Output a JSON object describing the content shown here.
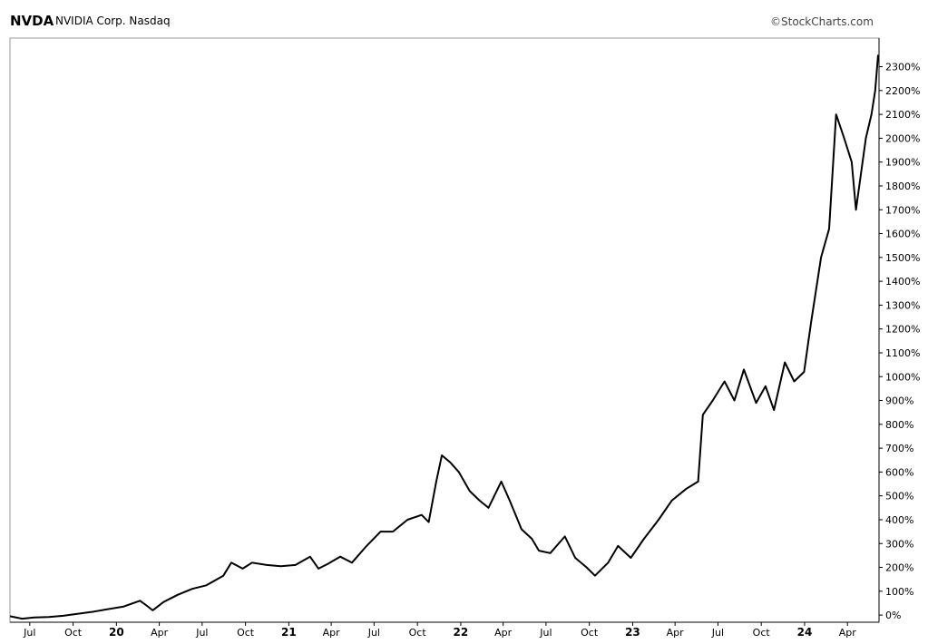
{
  "header": {
    "ticker": "NVDA",
    "name": "NVIDIA Corp. Nasdaq",
    "source": "©StockCharts.com"
  },
  "chart_data": {
    "type": "line",
    "ylabel": "",
    "xlabel": "",
    "grid": false,
    "legend": "none",
    "line_color": "#000000",
    "ylim": [
      -30,
      2420
    ],
    "y_ticks": [
      {
        "value": 0,
        "label": "0%"
      },
      {
        "value": 100,
        "label": "100%"
      },
      {
        "value": 200,
        "label": "200%"
      },
      {
        "value": 300,
        "label": "300%"
      },
      {
        "value": 400,
        "label": "400%"
      },
      {
        "value": 500,
        "label": "500%"
      },
      {
        "value": 600,
        "label": "600%"
      },
      {
        "value": 700,
        "label": "700%"
      },
      {
        "value": 800,
        "label": "800%"
      },
      {
        "value": 900,
        "label": "900%"
      },
      {
        "value": 1000,
        "label": "1000%"
      },
      {
        "value": 1100,
        "label": "1100%"
      },
      {
        "value": 1200,
        "label": "1200%"
      },
      {
        "value": 1300,
        "label": "1300%"
      },
      {
        "value": 1400,
        "label": "1400%"
      },
      {
        "value": 1500,
        "label": "1500%"
      },
      {
        "value": 1600,
        "label": "1600%"
      },
      {
        "value": 1700,
        "label": "1700%"
      },
      {
        "value": 1800,
        "label": "1800%"
      },
      {
        "value": 1900,
        "label": "1900%"
      },
      {
        "value": 2000,
        "label": "2000%"
      },
      {
        "value": 2100,
        "label": "2100%"
      },
      {
        "value": 2200,
        "label": "2200%"
      },
      {
        "value": 2300,
        "label": "2300%"
      }
    ],
    "xlim": [
      "2019-05-20",
      "2024-06-07"
    ],
    "x_ticks": [
      {
        "date": "2019-07-01",
        "label": "Jul",
        "major": false
      },
      {
        "date": "2019-10-01",
        "label": "Oct",
        "major": false
      },
      {
        "date": "2020-01-01",
        "label": "20",
        "major": true
      },
      {
        "date": "2020-04-01",
        "label": "Apr",
        "major": false
      },
      {
        "date": "2020-07-01",
        "label": "Jul",
        "major": false
      },
      {
        "date": "2020-10-01",
        "label": "Oct",
        "major": false
      },
      {
        "date": "2021-01-01",
        "label": "21",
        "major": true
      },
      {
        "date": "2021-04-01",
        "label": "Apr",
        "major": false
      },
      {
        "date": "2021-07-01",
        "label": "Jul",
        "major": false
      },
      {
        "date": "2021-10-01",
        "label": "Oct",
        "major": false
      },
      {
        "date": "2022-01-01",
        "label": "22",
        "major": true
      },
      {
        "date": "2022-04-01",
        "label": "Apr",
        "major": false
      },
      {
        "date": "2022-07-01",
        "label": "Jul",
        "major": false
      },
      {
        "date": "2022-10-01",
        "label": "Oct",
        "major": false
      },
      {
        "date": "2023-01-01",
        "label": "23",
        "major": true
      },
      {
        "date": "2023-04-01",
        "label": "Apr",
        "major": false
      },
      {
        "date": "2023-07-01",
        "label": "Jul",
        "major": false
      },
      {
        "date": "2023-10-01",
        "label": "Oct",
        "major": false
      },
      {
        "date": "2024-01-01",
        "label": "24",
        "major": true
      },
      {
        "date": "2024-04-01",
        "label": "Apr",
        "major": false
      }
    ],
    "series": [
      {
        "points": [
          [
            "2019-05-20",
            -5
          ],
          [
            "2019-06-15",
            -15
          ],
          [
            "2019-07-10",
            -10
          ],
          [
            "2019-08-10",
            -8
          ],
          [
            "2019-09-10",
            -3
          ],
          [
            "2019-10-10",
            5
          ],
          [
            "2019-11-15",
            15
          ],
          [
            "2019-12-15",
            25
          ],
          [
            "2020-01-15",
            35
          ],
          [
            "2020-02-20",
            60
          ],
          [
            "2020-03-05",
            40
          ],
          [
            "2020-03-18",
            20
          ],
          [
            "2020-04-10",
            55
          ],
          [
            "2020-05-10",
            85
          ],
          [
            "2020-06-10",
            110
          ],
          [
            "2020-07-10",
            125
          ],
          [
            "2020-08-15",
            165
          ],
          [
            "2020-09-01",
            220
          ],
          [
            "2020-09-25",
            195
          ],
          [
            "2020-10-15",
            220
          ],
          [
            "2020-11-15",
            210
          ],
          [
            "2020-12-15",
            205
          ],
          [
            "2021-01-15",
            210
          ],
          [
            "2021-02-15",
            245
          ],
          [
            "2021-03-05",
            195
          ],
          [
            "2021-03-25",
            215
          ],
          [
            "2021-04-20",
            245
          ],
          [
            "2021-05-15",
            220
          ],
          [
            "2021-06-15",
            290
          ],
          [
            "2021-07-15",
            350
          ],
          [
            "2021-08-10",
            350
          ],
          [
            "2021-09-10",
            400
          ],
          [
            "2021-10-10",
            420
          ],
          [
            "2021-10-25",
            390
          ],
          [
            "2021-11-10",
            560
          ],
          [
            "2021-11-22",
            670
          ],
          [
            "2021-12-10",
            640
          ],
          [
            "2021-12-28",
            600
          ],
          [
            "2022-01-20",
            520
          ],
          [
            "2022-02-10",
            480
          ],
          [
            "2022-03-01",
            450
          ],
          [
            "2022-03-28",
            560
          ],
          [
            "2022-04-15",
            480
          ],
          [
            "2022-05-10",
            360
          ],
          [
            "2022-06-01",
            320
          ],
          [
            "2022-06-16",
            270
          ],
          [
            "2022-07-10",
            260
          ],
          [
            "2022-08-10",
            330
          ],
          [
            "2022-09-01",
            240
          ],
          [
            "2022-09-25",
            200
          ],
          [
            "2022-10-13",
            165
          ],
          [
            "2022-11-10",
            220
          ],
          [
            "2022-12-01",
            290
          ],
          [
            "2022-12-28",
            240
          ],
          [
            "2023-01-25",
            320
          ],
          [
            "2023-02-25",
            400
          ],
          [
            "2023-03-25",
            480
          ],
          [
            "2023-04-25",
            530
          ],
          [
            "2023-05-20",
            560
          ],
          [
            "2023-05-30",
            840
          ],
          [
            "2023-06-20",
            900
          ],
          [
            "2023-07-15",
            980
          ],
          [
            "2023-08-05",
            900
          ],
          [
            "2023-08-25",
            1030
          ],
          [
            "2023-09-20",
            890
          ],
          [
            "2023-10-10",
            960
          ],
          [
            "2023-10-28",
            860
          ],
          [
            "2023-11-20",
            1060
          ],
          [
            "2023-12-10",
            980
          ],
          [
            "2023-12-31",
            1020
          ],
          [
            "2024-01-15",
            1230
          ],
          [
            "2024-02-05",
            1500
          ],
          [
            "2024-02-22",
            1620
          ],
          [
            "2024-03-08",
            2100
          ],
          [
            "2024-03-25",
            2000
          ],
          [
            "2024-04-10",
            1900
          ],
          [
            "2024-04-19",
            1700
          ],
          [
            "2024-05-10",
            2000
          ],
          [
            "2024-05-22",
            2100
          ],
          [
            "2024-05-30",
            2200
          ],
          [
            "2024-06-05",
            2350
          ]
        ]
      }
    ]
  }
}
